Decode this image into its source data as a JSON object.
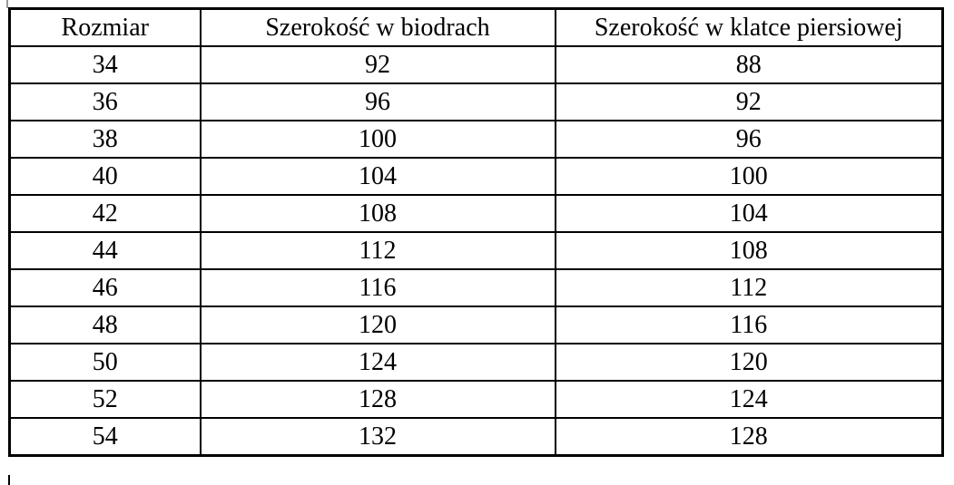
{
  "table": {
    "headers": [
      "Rozmiar",
      "Szerokość w biodrach",
      "Szerokość w klatce piersiowej"
    ],
    "rows": [
      [
        "34",
        "92",
        "88"
      ],
      [
        "36",
        "96",
        "92"
      ],
      [
        "38",
        "100",
        "96"
      ],
      [
        "40",
        "104",
        "100"
      ],
      [
        "42",
        "108",
        "104"
      ],
      [
        "44",
        "112",
        "108"
      ],
      [
        "46",
        "116",
        "112"
      ],
      [
        "48",
        "120",
        "116"
      ],
      [
        "50",
        "124",
        "120"
      ],
      [
        "52",
        "128",
        "124"
      ],
      [
        "54",
        "132",
        "128"
      ]
    ]
  },
  "colors": {
    "border": "#000000",
    "text": "#000000",
    "background": "#ffffff"
  },
  "chart_data": {
    "type": "table",
    "columns": [
      "Rozmiar",
      "Szerokość w biodrach",
      "Szerokość w klatce piersiowej"
    ],
    "rows": [
      [
        34,
        92,
        88
      ],
      [
        36,
        96,
        92
      ],
      [
        38,
        100,
        96
      ],
      [
        40,
        104,
        100
      ],
      [
        42,
        108,
        104
      ],
      [
        44,
        112,
        108
      ],
      [
        46,
        116,
        112
      ],
      [
        48,
        120,
        116
      ],
      [
        50,
        124,
        120
      ],
      [
        52,
        128,
        124
      ],
      [
        54,
        132,
        128
      ]
    ]
  }
}
